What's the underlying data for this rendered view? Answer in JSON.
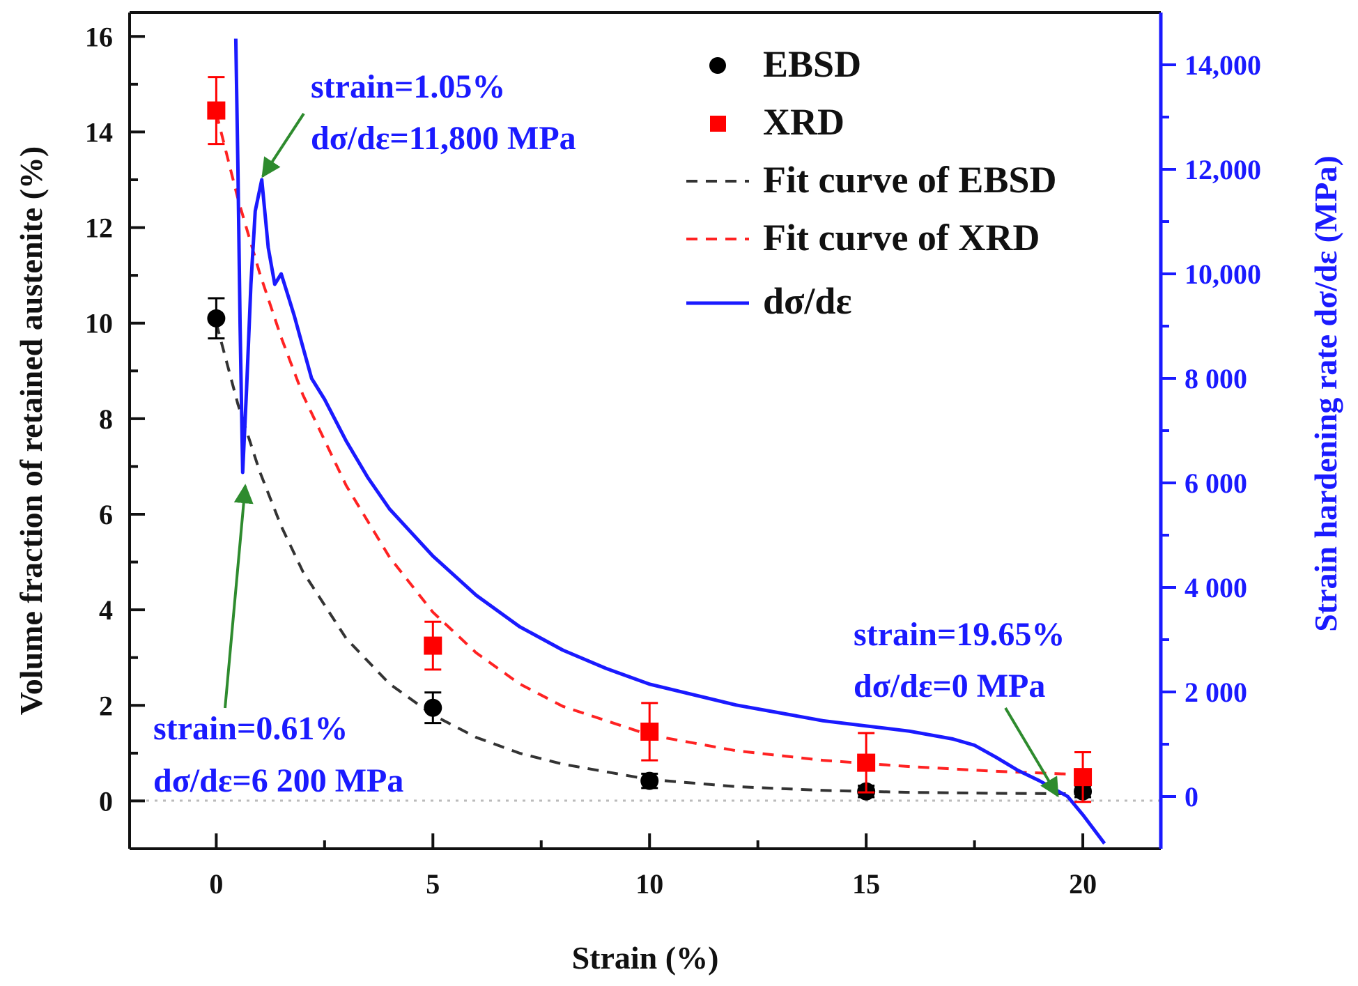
{
  "chart_data": {
    "type": "scatter",
    "xlabel": "Strain (%)",
    "ylabel": "Volume fraction of retained austenite (%)",
    "y2label": "Strain hardening rate dσ/dε (MPa)",
    "xlim": [
      -2,
      21.8
    ],
    "ylim": [
      -1,
      16.5
    ],
    "y2lim": [
      -1000,
      15000
    ],
    "x_ticks": [
      "0",
      "5",
      "10",
      "15",
      "20"
    ],
    "y_ticks": [
      "0",
      "2",
      "4",
      "6",
      "8",
      "10",
      "12",
      "14",
      "16"
    ],
    "y2_ticks": [
      "0",
      "2 000",
      "4 000",
      "6 000",
      "8 000",
      "10,000",
      "12,000",
      "14,000"
    ],
    "legend": {
      "position": "top-right",
      "entries": [
        "EBSD",
        "XRD",
        "Fit curve of EBSD",
        "Fit curve of XRD",
        "dσ/dε"
      ]
    },
    "series": [
      {
        "name": "EBSD",
        "kind": "scatter",
        "color": "#000000",
        "x": [
          0,
          5,
          10,
          15,
          20
        ],
        "y": [
          10.1,
          1.95,
          0.42,
          0.2,
          0.2
        ],
        "yerr": [
          0.42,
          0.32,
          0.15,
          0.12,
          0.12
        ]
      },
      {
        "name": "XRD",
        "kind": "scatter",
        "color": "#ff0000",
        "x": [
          0,
          5,
          10,
          15,
          20
        ],
        "y": [
          14.45,
          3.25,
          1.45,
          0.8,
          0.5
        ],
        "yerr": [
          0.7,
          0.5,
          0.6,
          0.62,
          0.52
        ]
      },
      {
        "name": "Fit curve of EBSD",
        "kind": "dashed-line",
        "color": "#333333",
        "x": [
          0,
          0.5,
          1,
          1.5,
          2,
          3,
          4,
          5,
          6,
          7,
          8,
          10,
          12,
          14,
          16,
          18,
          20
        ],
        "y": [
          10.0,
          8.3,
          6.9,
          5.75,
          4.8,
          3.4,
          2.45,
          1.8,
          1.33,
          1.0,
          0.77,
          0.45,
          0.3,
          0.22,
          0.18,
          0.16,
          0.15
        ]
      },
      {
        "name": "Fit curve of XRD",
        "kind": "dashed-line",
        "color": "#ff2222",
        "x": [
          0,
          0.5,
          1,
          1.5,
          2,
          3,
          4,
          5,
          6,
          7,
          8,
          10,
          12,
          14,
          16,
          18,
          20
        ],
        "y": [
          14.4,
          12.6,
          11.05,
          9.7,
          8.5,
          6.6,
          5.1,
          3.95,
          3.1,
          2.45,
          1.98,
          1.38,
          1.05,
          0.85,
          0.72,
          0.62,
          0.55
        ]
      },
      {
        "name": "dσ/dε",
        "kind": "line",
        "axis": "right",
        "color": "#1a1aff",
        "x": [
          0.45,
          0.5,
          0.55,
          0.61,
          0.7,
          0.8,
          0.9,
          1.05,
          1.2,
          1.35,
          1.5,
          1.65,
          1.8,
          2.0,
          2.2,
          2.5,
          3,
          3.5,
          4,
          5,
          6,
          7,
          8,
          9,
          10,
          11,
          12,
          13,
          14,
          15,
          16,
          17,
          17.5,
          18,
          18.5,
          19,
          19.65,
          20,
          20.5
        ],
        "y": [
          14500,
          12000,
          9000,
          6200,
          7800,
          9800,
          11200,
          11800,
          10500,
          9800,
          10000,
          9600,
          9200,
          8600,
          8000,
          7600,
          6800,
          6100,
          5500,
          4600,
          3850,
          3250,
          2800,
          2450,
          2150,
          1950,
          1750,
          1600,
          1450,
          1350,
          1250,
          1100,
          980,
          750,
          500,
          300,
          0,
          -350,
          -900
        ]
      }
    ],
    "annotations": [
      {
        "line1": "strain=1.05%",
        "line2": "dσ/dε=11,800 MPa"
      },
      {
        "line1": "strain=0.61%",
        "line2": "dσ/dε=6 200 MPa"
      },
      {
        "line1": "strain=19.65%",
        "line2": "dσ/dε=0 MPa"
      }
    ]
  }
}
